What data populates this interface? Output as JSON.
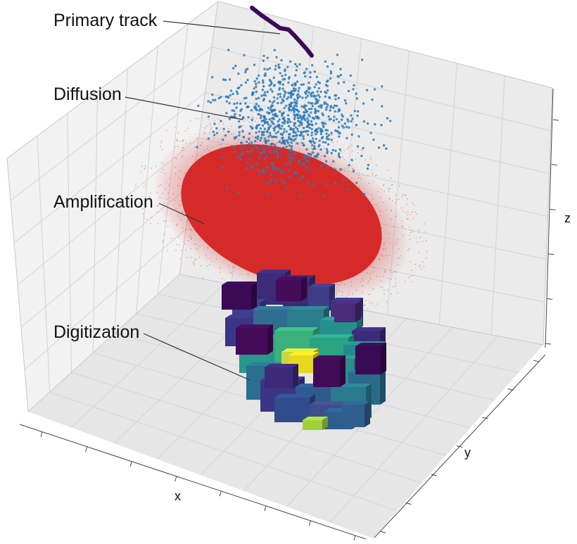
{
  "annotations": {
    "primary_track": "Primary track",
    "diffusion": "Diffusion",
    "amplification": "Amplification",
    "digitization": "Digitization"
  },
  "axes": {
    "x": "x",
    "y": "y",
    "z": "z"
  },
  "colors": {
    "track": "#3d0a54",
    "diffusion": "#2a7ab8",
    "amplification": "#d62a28",
    "voxel_low": "#3b2c7a",
    "voxel_mid": "#27908c",
    "voxel_high": "#e6d71f",
    "pane": "#f2f2f2",
    "grid": "#d9d9d9"
  }
}
